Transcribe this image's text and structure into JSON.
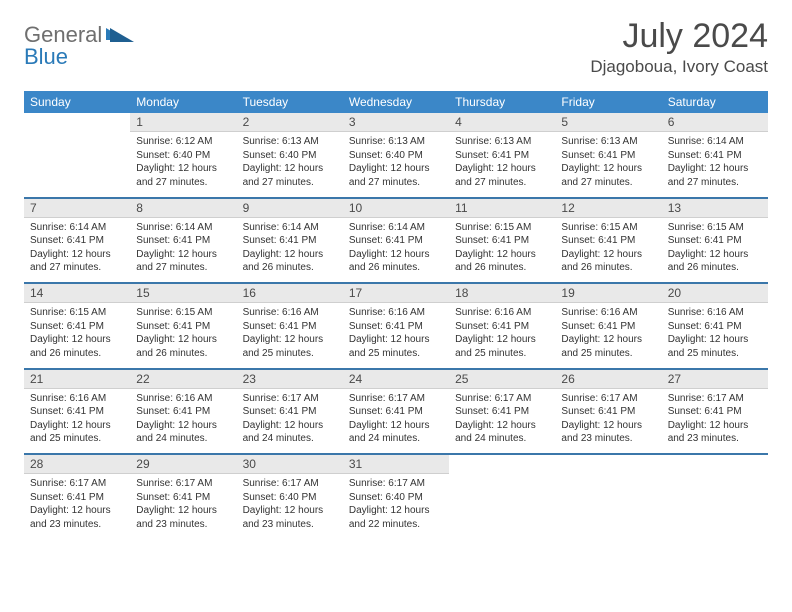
{
  "brand": {
    "word1": "General",
    "word2": "Blue"
  },
  "title": "July 2024",
  "location": "Djagoboua, Ivory Coast",
  "colors": {
    "header_bg": "#3b87c8",
    "header_text": "#ffffff",
    "daynum_bg": "#e9e9e9",
    "rule": "#3b77aa",
    "brand_gray": "#6f6f6f",
    "brand_blue": "#2a7ab8"
  },
  "day_names": [
    "Sunday",
    "Monday",
    "Tuesday",
    "Wednesday",
    "Thursday",
    "Friday",
    "Saturday"
  ],
  "weeks": [
    {
      "nums": [
        "",
        "1",
        "2",
        "3",
        "4",
        "5",
        "6"
      ],
      "cells": [
        null,
        {
          "sr": "Sunrise: 6:12 AM",
          "ss": "Sunset: 6:40 PM",
          "dl": "Daylight: 12 hours and 27 minutes."
        },
        {
          "sr": "Sunrise: 6:13 AM",
          "ss": "Sunset: 6:40 PM",
          "dl": "Daylight: 12 hours and 27 minutes."
        },
        {
          "sr": "Sunrise: 6:13 AM",
          "ss": "Sunset: 6:40 PM",
          "dl": "Daylight: 12 hours and 27 minutes."
        },
        {
          "sr": "Sunrise: 6:13 AM",
          "ss": "Sunset: 6:41 PM",
          "dl": "Daylight: 12 hours and 27 minutes."
        },
        {
          "sr": "Sunrise: 6:13 AM",
          "ss": "Sunset: 6:41 PM",
          "dl": "Daylight: 12 hours and 27 minutes."
        },
        {
          "sr": "Sunrise: 6:14 AM",
          "ss": "Sunset: 6:41 PM",
          "dl": "Daylight: 12 hours and 27 minutes."
        }
      ]
    },
    {
      "nums": [
        "7",
        "8",
        "9",
        "10",
        "11",
        "12",
        "13"
      ],
      "cells": [
        {
          "sr": "Sunrise: 6:14 AM",
          "ss": "Sunset: 6:41 PM",
          "dl": "Daylight: 12 hours and 27 minutes."
        },
        {
          "sr": "Sunrise: 6:14 AM",
          "ss": "Sunset: 6:41 PM",
          "dl": "Daylight: 12 hours and 27 minutes."
        },
        {
          "sr": "Sunrise: 6:14 AM",
          "ss": "Sunset: 6:41 PM",
          "dl": "Daylight: 12 hours and 26 minutes."
        },
        {
          "sr": "Sunrise: 6:14 AM",
          "ss": "Sunset: 6:41 PM",
          "dl": "Daylight: 12 hours and 26 minutes."
        },
        {
          "sr": "Sunrise: 6:15 AM",
          "ss": "Sunset: 6:41 PM",
          "dl": "Daylight: 12 hours and 26 minutes."
        },
        {
          "sr": "Sunrise: 6:15 AM",
          "ss": "Sunset: 6:41 PM",
          "dl": "Daylight: 12 hours and 26 minutes."
        },
        {
          "sr": "Sunrise: 6:15 AM",
          "ss": "Sunset: 6:41 PM",
          "dl": "Daylight: 12 hours and 26 minutes."
        }
      ]
    },
    {
      "nums": [
        "14",
        "15",
        "16",
        "17",
        "18",
        "19",
        "20"
      ],
      "cells": [
        {
          "sr": "Sunrise: 6:15 AM",
          "ss": "Sunset: 6:41 PM",
          "dl": "Daylight: 12 hours and 26 minutes."
        },
        {
          "sr": "Sunrise: 6:15 AM",
          "ss": "Sunset: 6:41 PM",
          "dl": "Daylight: 12 hours and 26 minutes."
        },
        {
          "sr": "Sunrise: 6:16 AM",
          "ss": "Sunset: 6:41 PM",
          "dl": "Daylight: 12 hours and 25 minutes."
        },
        {
          "sr": "Sunrise: 6:16 AM",
          "ss": "Sunset: 6:41 PM",
          "dl": "Daylight: 12 hours and 25 minutes."
        },
        {
          "sr": "Sunrise: 6:16 AM",
          "ss": "Sunset: 6:41 PM",
          "dl": "Daylight: 12 hours and 25 minutes."
        },
        {
          "sr": "Sunrise: 6:16 AM",
          "ss": "Sunset: 6:41 PM",
          "dl": "Daylight: 12 hours and 25 minutes."
        },
        {
          "sr": "Sunrise: 6:16 AM",
          "ss": "Sunset: 6:41 PM",
          "dl": "Daylight: 12 hours and 25 minutes."
        }
      ]
    },
    {
      "nums": [
        "21",
        "22",
        "23",
        "24",
        "25",
        "26",
        "27"
      ],
      "cells": [
        {
          "sr": "Sunrise: 6:16 AM",
          "ss": "Sunset: 6:41 PM",
          "dl": "Daylight: 12 hours and 25 minutes."
        },
        {
          "sr": "Sunrise: 6:16 AM",
          "ss": "Sunset: 6:41 PM",
          "dl": "Daylight: 12 hours and 24 minutes."
        },
        {
          "sr": "Sunrise: 6:17 AM",
          "ss": "Sunset: 6:41 PM",
          "dl": "Daylight: 12 hours and 24 minutes."
        },
        {
          "sr": "Sunrise: 6:17 AM",
          "ss": "Sunset: 6:41 PM",
          "dl": "Daylight: 12 hours and 24 minutes."
        },
        {
          "sr": "Sunrise: 6:17 AM",
          "ss": "Sunset: 6:41 PM",
          "dl": "Daylight: 12 hours and 24 minutes."
        },
        {
          "sr": "Sunrise: 6:17 AM",
          "ss": "Sunset: 6:41 PM",
          "dl": "Daylight: 12 hours and 23 minutes."
        },
        {
          "sr": "Sunrise: 6:17 AM",
          "ss": "Sunset: 6:41 PM",
          "dl": "Daylight: 12 hours and 23 minutes."
        }
      ]
    },
    {
      "nums": [
        "28",
        "29",
        "30",
        "31",
        "",
        "",
        ""
      ],
      "cells": [
        {
          "sr": "Sunrise: 6:17 AM",
          "ss": "Sunset: 6:41 PM",
          "dl": "Daylight: 12 hours and 23 minutes."
        },
        {
          "sr": "Sunrise: 6:17 AM",
          "ss": "Sunset: 6:41 PM",
          "dl": "Daylight: 12 hours and 23 minutes."
        },
        {
          "sr": "Sunrise: 6:17 AM",
          "ss": "Sunset: 6:40 PM",
          "dl": "Daylight: 12 hours and 23 minutes."
        },
        {
          "sr": "Sunrise: 6:17 AM",
          "ss": "Sunset: 6:40 PM",
          "dl": "Daylight: 12 hours and 22 minutes."
        },
        null,
        null,
        null
      ]
    }
  ]
}
